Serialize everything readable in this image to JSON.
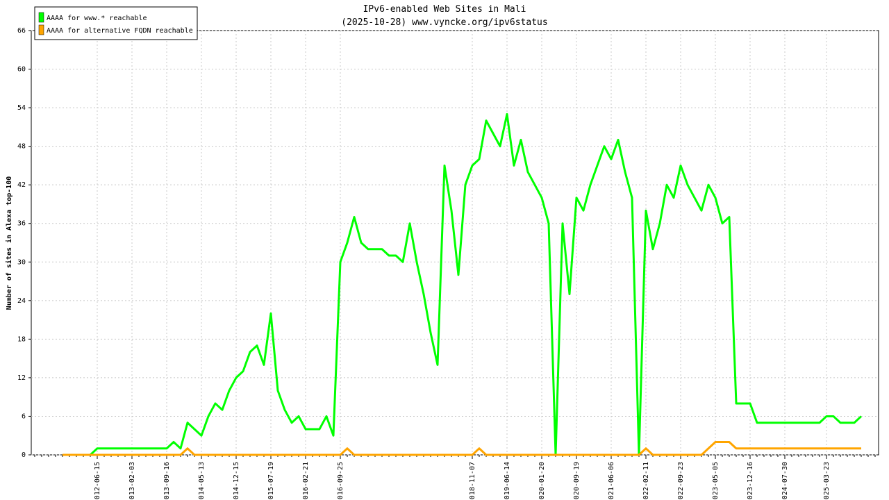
{
  "chart_data": {
    "type": "line",
    "title": "IPv6-enabled Web Sites in Mali",
    "subtitle": "(2025-10-28) www.vyncke.org/ipv6status",
    "y_label": "Number of sites in Alexa top-100",
    "categories": [
      null,
      null,
      null,
      null,
      null,
      null,
      null,
      null,
      null,
      "2012-06-15",
      null,
      null,
      null,
      null,
      "2013-02-03",
      null,
      null,
      null,
      null,
      "2013-09-16",
      null,
      null,
      null,
      null,
      "2014-05-13",
      null,
      null,
      null,
      null,
      "2014-12-15",
      null,
      null,
      null,
      null,
      "2015-07-19",
      null,
      null,
      null,
      null,
      "2016-02-21",
      null,
      null,
      null,
      null,
      "2016-09-25",
      null,
      null,
      null,
      null,
      null,
      null,
      null,
      null,
      null,
      null,
      null,
      null,
      null,
      null,
      null,
      null,
      null,
      null,
      "2018-11-07",
      null,
      null,
      null,
      null,
      "2019-06-14",
      null,
      null,
      null,
      null,
      "2020-01-20",
      null,
      null,
      null,
      null,
      "2020-09-19",
      null,
      null,
      null,
      null,
      "2021-06-06",
      null,
      null,
      null,
      null,
      "2022-02-11",
      null,
      null,
      null,
      null,
      "2022-09-23",
      null,
      null,
      null,
      null,
      "2023-05-05",
      null,
      null,
      null,
      null,
      "2023-12-16",
      null,
      null,
      null,
      null,
      "2024-07-30",
      null,
      null,
      null,
      null,
      null,
      "2025-03-23",
      null,
      null,
      null,
      null,
      null,
      null,
      null
    ],
    "series": [
      {
        "name": "AAAA for www.* reachable",
        "color": "#00ff00",
        "values": [
          null,
          null,
          null,
          null,
          0,
          0,
          0,
          0,
          0,
          1,
          1,
          1,
          1,
          1,
          1,
          1,
          1,
          1,
          1,
          1,
          2,
          1,
          5,
          4,
          3,
          6,
          8,
          7,
          10,
          12,
          13,
          16,
          17,
          14,
          22,
          10,
          7,
          5,
          6,
          4,
          4,
          4,
          6,
          3,
          30,
          33,
          37,
          33,
          32,
          32,
          32,
          31,
          31,
          30,
          36,
          30,
          25,
          19,
          14,
          45,
          38,
          28,
          42,
          45,
          46,
          52,
          50,
          48,
          53,
          45,
          49,
          44,
          42,
          40,
          36,
          0,
          36,
          25,
          40,
          38,
          42,
          45,
          48,
          46,
          49,
          44,
          40,
          0,
          38,
          32,
          36,
          42,
          40,
          45,
          42,
          40,
          38,
          42,
          40,
          36,
          37,
          8,
          8,
          8,
          5,
          5,
          5,
          5,
          5,
          5,
          5,
          5,
          5,
          5,
          6,
          6,
          5,
          5,
          5,
          6,
          null,
          null
        ]
      },
      {
        "name": "AAAA for alternative FQDN reachable",
        "color": "#ffa500",
        "values": [
          null,
          null,
          null,
          null,
          0,
          0,
          0,
          0,
          0,
          0,
          0,
          0,
          0,
          0,
          0,
          0,
          0,
          0,
          0,
          0,
          0,
          0,
          1,
          0,
          0,
          0,
          0,
          0,
          0,
          0,
          0,
          0,
          0,
          0,
          0,
          0,
          0,
          0,
          0,
          0,
          0,
          0,
          0,
          0,
          0,
          1,
          0,
          0,
          0,
          0,
          0,
          0,
          0,
          0,
          0,
          0,
          0,
          0,
          0,
          0,
          0,
          0,
          0,
          0,
          1,
          0,
          0,
          0,
          0,
          0,
          0,
          0,
          0,
          0,
          0,
          0,
          0,
          0,
          0,
          0,
          0,
          0,
          0,
          0,
          0,
          0,
          0,
          0,
          1,
          0,
          0,
          0,
          0,
          0,
          0,
          0,
          0,
          1,
          2,
          2,
          2,
          1,
          1,
          1,
          1,
          1,
          1,
          1,
          1,
          1,
          1,
          1,
          1,
          1,
          1,
          1,
          1,
          1,
          1,
          1,
          null,
          null
        ]
      }
    ],
    "ylim": [
      0,
      66
    ],
    "yticks": [
      0,
      6,
      12,
      18,
      24,
      30,
      36,
      42,
      48,
      54,
      60,
      66
    ],
    "grid": true,
    "legend": "top-left"
  }
}
